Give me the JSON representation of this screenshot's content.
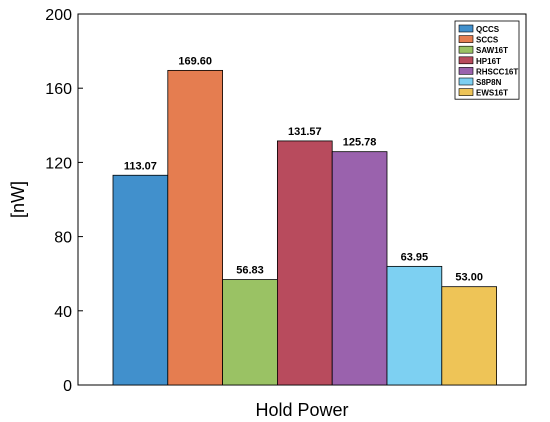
{
  "chart_data": {
    "type": "bar",
    "xlabel": "Hold Power",
    "ylabel": "[nW]",
    "ylim": [
      0,
      200
    ],
    "yticks": [
      0,
      40,
      80,
      120,
      160,
      200
    ],
    "legend_position": "top-right",
    "grid": false,
    "series": [
      {
        "name": "QCCS",
        "value": 113.07,
        "label": "113.07",
        "color": "#4190CC"
      },
      {
        "name": "SCCS",
        "value": 169.6,
        "label": "169.60",
        "color": "#E57D50"
      },
      {
        "name": "SAW16T",
        "value": 56.83,
        "label": "56.83",
        "color": "#9AC264"
      },
      {
        "name": "HP16T",
        "value": 131.57,
        "label": "131.57",
        "color": "#B84B5D"
      },
      {
        "name": "RHSCC16T",
        "value": 125.78,
        "label": "125.78",
        "color": "#9A62AD"
      },
      {
        "name": "S8P8N",
        "value": 63.95,
        "label": "63.95",
        "color": "#7DD0F2"
      },
      {
        "name": "EWS16T",
        "value": 53.0,
        "label": "53.00",
        "color": "#EEC457"
      }
    ]
  }
}
